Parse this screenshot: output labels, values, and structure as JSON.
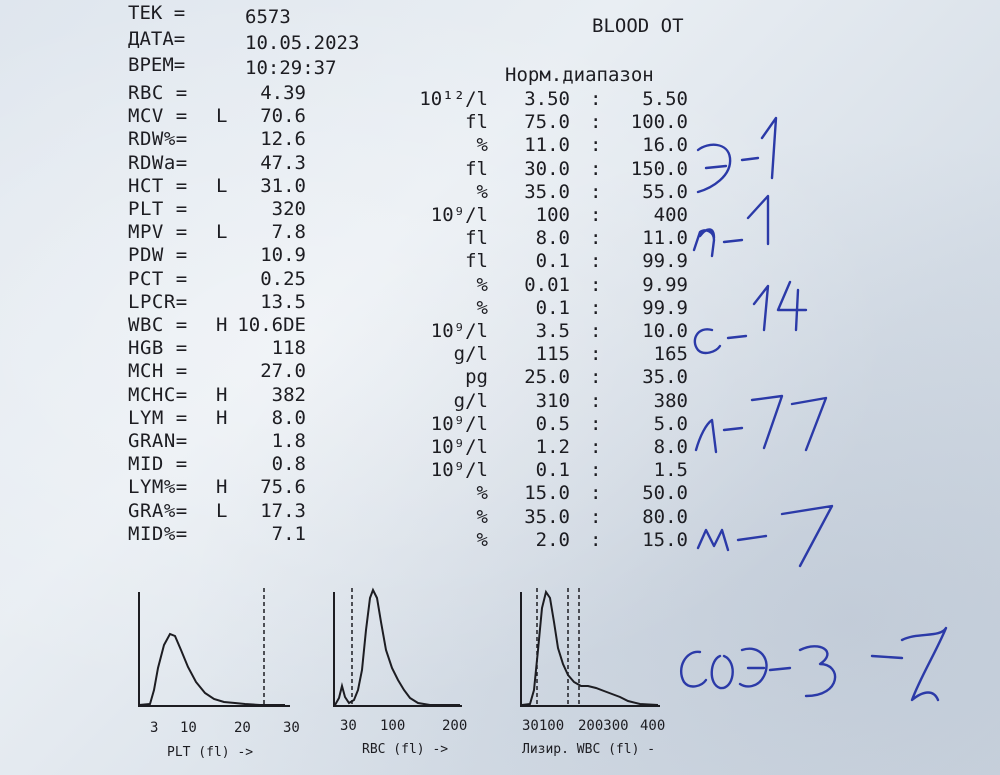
{
  "header": {
    "tek_label": "TEK =",
    "tek_value": "6573",
    "date_label": "ДАТА=",
    "date_value": "10.05.2023",
    "time_label": "ВРЕМ=",
    "time_value": "10:29:37",
    "title": "BLOOD OT",
    "norm_title": "Норм.диапазон"
  },
  "rows": [
    {
      "label": "RBC =",
      "flag": "",
      "value": "4.39",
      "unit": "10¹²/l",
      "low": "3.50",
      "high": "5.50"
    },
    {
      "label": "MCV =",
      "flag": "L",
      "value": "70.6",
      "unit": "fl",
      "low": "75.0",
      "high": "100.0"
    },
    {
      "label": "RDW%=",
      "flag": "",
      "value": "12.6",
      "unit": "%",
      "low": "11.0",
      "high": "16.0"
    },
    {
      "label": "RDWa=",
      "flag": "",
      "value": "47.3",
      "unit": "fl",
      "low": "30.0",
      "high": "150.0"
    },
    {
      "label": "HCT =",
      "flag": "L",
      "value": "31.0",
      "unit": "%",
      "low": "35.0",
      "high": "55.0"
    },
    {
      "label": "PLT =",
      "flag": "",
      "value": "320",
      "unit": "10⁹/l",
      "low": "100",
      "high": "400"
    },
    {
      "label": "MPV =",
      "flag": "L",
      "value": "7.8",
      "unit": "fl",
      "low": "8.0",
      "high": "11.0"
    },
    {
      "label": "PDW =",
      "flag": "",
      "value": "10.9",
      "unit": "fl",
      "low": "0.1",
      "high": "99.9"
    },
    {
      "label": "PCT =",
      "flag": "",
      "value": "0.25",
      "unit": "%",
      "low": "0.01",
      "high": "9.99"
    },
    {
      "label": "LPCR=",
      "flag": "",
      "value": "13.5",
      "unit": "%",
      "low": "0.1",
      "high": "99.9"
    },
    {
      "label": "WBC =",
      "flag": "H",
      "value": "10.6DE",
      "unit": "10⁹/l",
      "low": "3.5",
      "high": "10.0"
    },
    {
      "label": "HGB =",
      "flag": "",
      "value": "118",
      "unit": "g/l",
      "low": "115",
      "high": "165"
    },
    {
      "label": "MCH =",
      "flag": "",
      "value": "27.0",
      "unit": "pg",
      "low": "25.0",
      "high": "35.0"
    },
    {
      "label": "MCHC=",
      "flag": "H",
      "value": "382",
      "unit": "g/l",
      "low": "310",
      "high": "380"
    },
    {
      "label": "LYM =",
      "flag": "H",
      "value": "8.0",
      "unit": "10⁹/l",
      "low": "0.5",
      "high": "5.0"
    },
    {
      "label": "GRAN=",
      "flag": "",
      "value": "1.8",
      "unit": "10⁹/l",
      "low": "1.2",
      "high": "8.0"
    },
    {
      "label": "MID =",
      "flag": "",
      "value": "0.8",
      "unit": "10⁹/l",
      "low": "0.1",
      "high": "1.5"
    },
    {
      "label": "LYM%=",
      "flag": "H",
      "value": "75.6",
      "unit": "%",
      "low": "15.0",
      "high": "50.0"
    },
    {
      "label": "GRA%=",
      "flag": "L",
      "value": "17.3",
      "unit": "%",
      "low": "35.0",
      "high": "80.0"
    },
    {
      "label": "MID%=",
      "flag": "",
      "value": "7.1",
      "unit": "%",
      "low": "2.0",
      "high": "15.0"
    }
  ],
  "range_separator": ":",
  "histograms": {
    "plt": {
      "ticks": [
        "3",
        "10",
        "20",
        "30"
      ],
      "caption": "PLT (fl) ->"
    },
    "rbc": {
      "ticks": [
        "30",
        "100",
        "200"
      ],
      "caption": "RBC (fl) ->"
    },
    "wbc": {
      "ticks": [
        "30100",
        "200300",
        "400"
      ],
      "caption": "Лизир. WBC (fl) -"
    }
  },
  "handwriting": [
    "э-1",
    "п-1",
    "с-14",
    "л-77",
    "м-7",
    "СОЭ-3"
  ],
  "colors": {
    "ink": "#2b3aa8",
    "print": "#1d1d22",
    "paper": "#e3e9ef"
  }
}
